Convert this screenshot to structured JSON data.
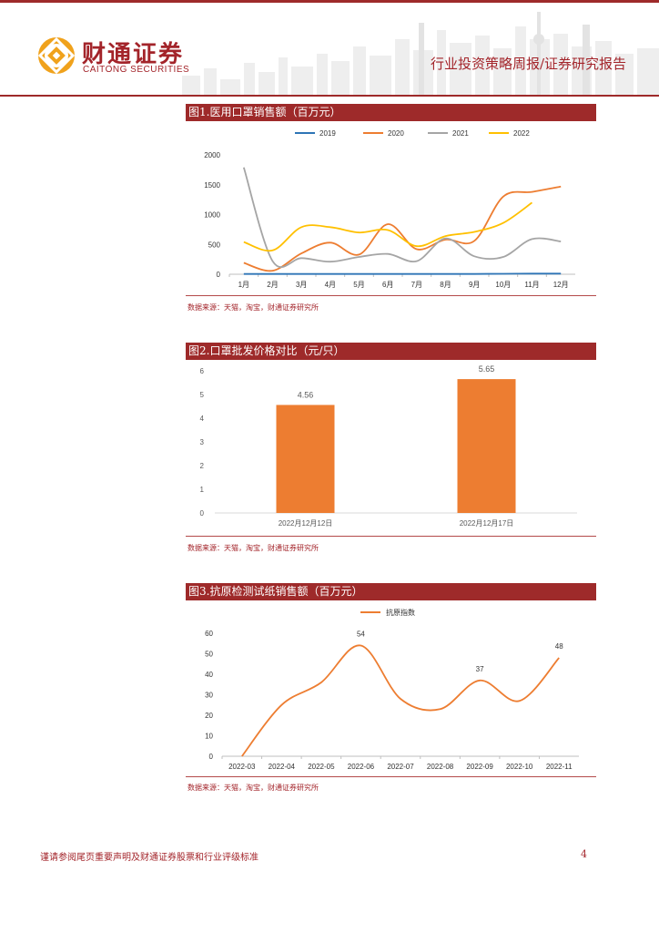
{
  "header": {
    "brand_cn": "财通证券",
    "brand_en": "CAITONG SECURITIES",
    "report_type": "行业投资策略周报/证券研究报告"
  },
  "colors": {
    "brand_red": "#9e2a2a",
    "orange": "#ed7d31",
    "blue": "#2e75b6",
    "gray": "#a5a5a5",
    "yellow": "#ffc000"
  },
  "figures": [
    {
      "title": "图1.医用口罩销售额（百万元）",
      "source": "数据来源：天猫，淘宝，财通证券研究所"
    },
    {
      "title": "图2.口罩批发价格对比（元/只）",
      "source": "数据来源：天猫，淘宝，财通证券研究所"
    },
    {
      "title": "图3.抗原检测试纸销售额（百万元）",
      "source": "数据来源：天猫，淘宝，财通证券研究所"
    }
  ],
  "chart_data": [
    {
      "type": "line",
      "title": "图1.医用口罩销售额（百万元）",
      "categories": [
        "1月",
        "2月",
        "3月",
        "4月",
        "5月",
        "6月",
        "7月",
        "8月",
        "9月",
        "10月",
        "11月",
        "12月"
      ],
      "ylim": [
        0,
        2000
      ],
      "yticks": [
        0,
        500,
        1000,
        1500,
        2000
      ],
      "legend_position": "top",
      "series": [
        {
          "name": "2019",
          "color": "#2e75b6",
          "values": [
            5,
            5,
            5,
            5,
            5,
            5,
            5,
            5,
            5,
            8,
            10,
            10
          ]
        },
        {
          "name": "2020",
          "color": "#ed7d31",
          "values": [
            190,
            60,
            350,
            530,
            330,
            840,
            420,
            580,
            560,
            1300,
            1380,
            1470
          ]
        },
        {
          "name": "2021",
          "color": "#a5a5a5",
          "values": [
            1790,
            220,
            270,
            210,
            290,
            340,
            220,
            600,
            300,
            290,
            590,
            550
          ]
        },
        {
          "name": "2022",
          "color": "#ffc000",
          "values": [
            540,
            400,
            790,
            790,
            700,
            740,
            470,
            640,
            710,
            860,
            1200,
            null
          ]
        }
      ]
    },
    {
      "type": "bar",
      "title": "图2.口罩批发价格对比（元/只）",
      "categories": [
        "2022月12月12日",
        "2022月12月17日"
      ],
      "values": [
        4.56,
        5.65
      ],
      "data_labels": [
        "4.56",
        "5.65"
      ],
      "ylim": [
        0,
        6
      ],
      "yticks": [
        0,
        1,
        2,
        3,
        4,
        5,
        6
      ],
      "color": "#ed7d31"
    },
    {
      "type": "line",
      "title": "图3.抗原检测试纸销售额（百万元）",
      "categories": [
        "2022-03",
        "2022-04",
        "2022-05",
        "2022-06",
        "2022-07",
        "2022-08",
        "2022-09",
        "2022-10",
        "2022-11"
      ],
      "ylim": [
        0,
        60
      ],
      "yticks": [
        0,
        10,
        20,
        30,
        40,
        50,
        60
      ],
      "legend_position": "top",
      "series": [
        {
          "name": "抗原指数",
          "color": "#ed7d31",
          "values": [
            0,
            25,
            36,
            54,
            28,
            23,
            37,
            27,
            48
          ]
        }
      ],
      "point_labels": [
        {
          "index": 3,
          "text": "54"
        },
        {
          "index": 6,
          "text": "37"
        },
        {
          "index": 8,
          "text": "48"
        }
      ]
    }
  ],
  "footer": {
    "disclaimer": "谨请参阅尾页重要声明及财通证券股票和行业评级标准",
    "page_number": "4"
  }
}
